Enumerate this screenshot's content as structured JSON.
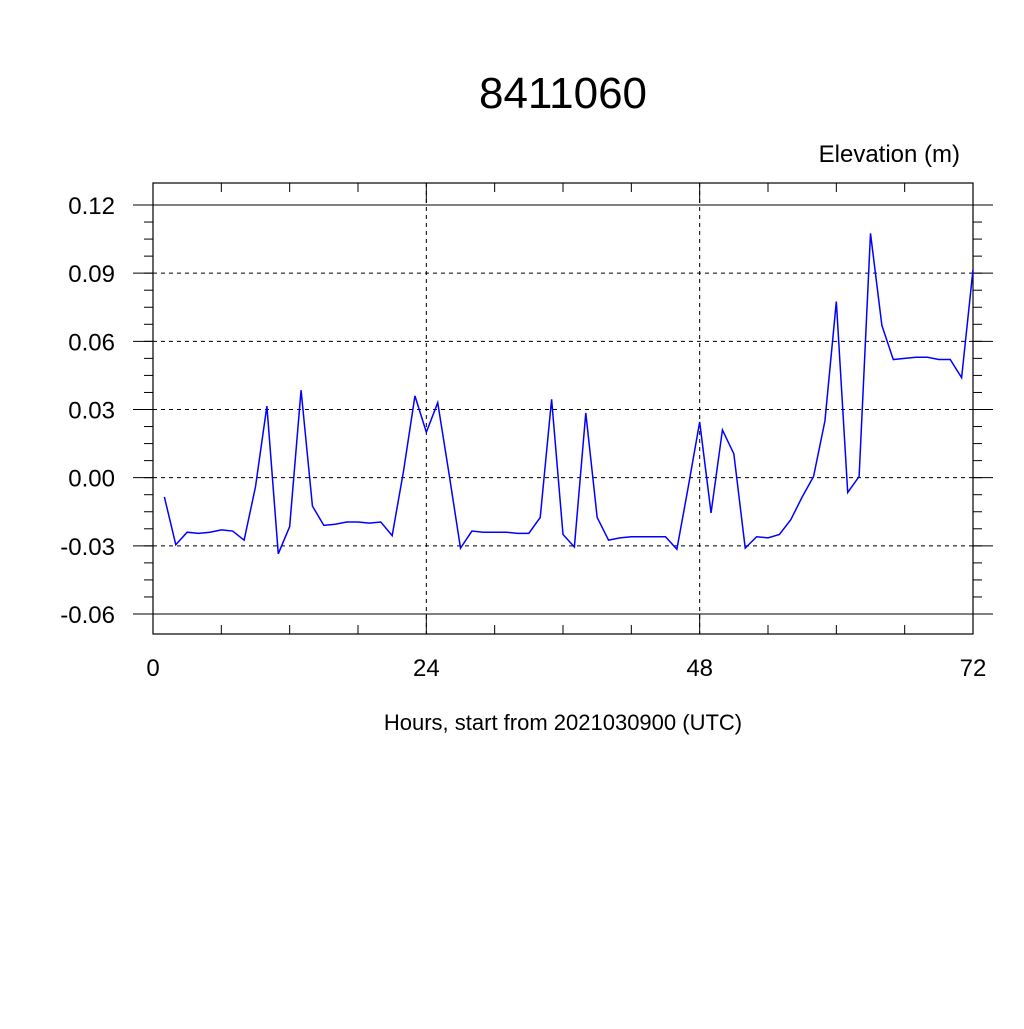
{
  "chart_data": {
    "type": "line",
    "title": "8411060",
    "ylabel": "Elevation (m)",
    "xlabel": "Hours, start from 2021030900 (UTC)",
    "xlim": [
      0,
      72
    ],
    "ylim": [
      -0.06,
      0.12
    ],
    "x_ticks": [
      0,
      24,
      48,
      72
    ],
    "x_tick_labels": [
      "0",
      "24",
      "48",
      "72"
    ],
    "y_ticks": [
      -0.06,
      -0.03,
      0.0,
      0.03,
      0.06,
      0.09,
      0.12
    ],
    "y_tick_labels": [
      "-0.06",
      "-0.03",
      "0.00",
      "0.03",
      "0.06",
      "0.09",
      "0.12"
    ],
    "grid": true,
    "line_color": "#0000ff",
    "series": [
      {
        "x": [
          1,
          2,
          3,
          4,
          5,
          6,
          7,
          8,
          9,
          10,
          11,
          12,
          13,
          14,
          15,
          16,
          17,
          18,
          19,
          20,
          21,
          22,
          23,
          24,
          25,
          26,
          27,
          28,
          29,
          30,
          31,
          32,
          33,
          34,
          35,
          36,
          37,
          38,
          39,
          40,
          41,
          42,
          43,
          44,
          45,
          46,
          47,
          48,
          49,
          50,
          51,
          52,
          53,
          54,
          55,
          56,
          57,
          58,
          59,
          60,
          61,
          62,
          63,
          64,
          65,
          66,
          67,
          68,
          69,
          70,
          71,
          72
        ],
        "values": [
          -0.0085,
          -0.0295,
          -0.024,
          -0.0245,
          -0.024,
          -0.023,
          -0.0235,
          -0.0275,
          -0.004,
          0.0315,
          -0.0335,
          -0.0215,
          0.0385,
          -0.0125,
          -0.021,
          -0.0205,
          -0.0195,
          -0.0195,
          -0.02,
          -0.0195,
          -0.0255,
          0.003,
          0.036,
          0.02,
          0.033,
          0.0015,
          -0.031,
          -0.0235,
          -0.024,
          -0.024,
          -0.024,
          -0.0245,
          -0.0245,
          -0.0175,
          0.0345,
          -0.025,
          -0.0305,
          0.0285,
          -0.0175,
          -0.0275,
          -0.0265,
          -0.026,
          -0.026,
          -0.026,
          -0.026,
          -0.0315,
          -0.004,
          0.0245,
          -0.0155,
          0.021,
          0.0105,
          -0.031,
          -0.026,
          -0.0265,
          -0.025,
          -0.0185,
          -0.0085,
          0.0005,
          0.025,
          0.0775,
          -0.0065,
          0.0005,
          0.1075,
          0.067,
          0.052,
          0.0525,
          0.053,
          0.053,
          0.052,
          0.052,
          0.044,
          0.0915
        ]
      }
    ]
  }
}
